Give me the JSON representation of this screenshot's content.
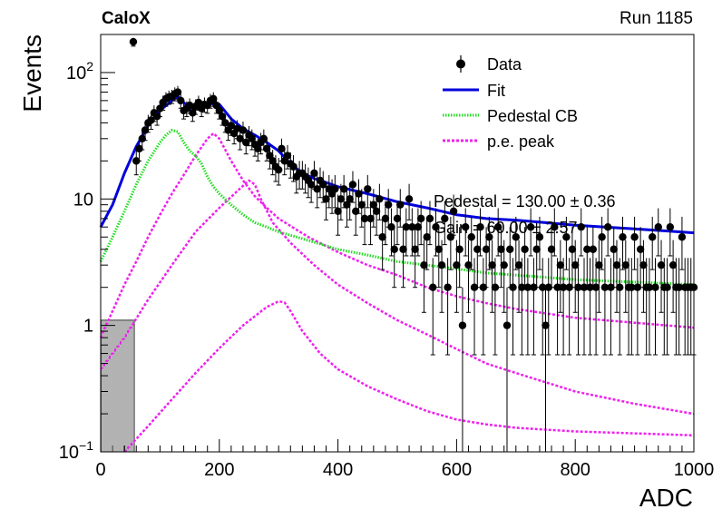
{
  "header": {
    "experiment": "CaloX",
    "run": "Run 1185"
  },
  "chart_data": {
    "type": "scatter",
    "title": "",
    "xlabel": "ADC",
    "ylabel": "Events",
    "xlim": [
      0,
      1000
    ],
    "ylim": [
      0.1,
      200
    ],
    "y_scale": "log",
    "grid": false,
    "legend_position": "top-right",
    "x_ticks": [
      "0",
      "200",
      "400",
      "600",
      "800",
      "1000"
    ],
    "y_ticks": [
      {
        "value": 0.1,
        "base": "10",
        "exp": "−1"
      },
      {
        "value": 1,
        "label": "1"
      },
      {
        "value": 10,
        "label": "10"
      },
      {
        "value": 100,
        "base": "10",
        "exp": "2"
      }
    ],
    "stat_box": [
      "Pedestal = 130.00 ± 0.36",
      "Gain = 60.00 ± 2.57"
    ],
    "legend": [
      {
        "label": "Data",
        "style": "marker",
        "color": "#000000"
      },
      {
        "label": "Fit",
        "style": "solid",
        "color": "#0000dd"
      },
      {
        "label": "Pedestal CB",
        "style": "dotted",
        "color": "#22dd22"
      },
      {
        "label": "p.e. peak",
        "style": "dashed",
        "color": "#ee22ee"
      }
    ],
    "data_points": [
      [
        55,
        175
      ],
      [
        60,
        20
      ],
      [
        65,
        25
      ],
      [
        70,
        30
      ],
      [
        75,
        35
      ],
      [
        80,
        40
      ],
      [
        85,
        42
      ],
      [
        90,
        48
      ],
      [
        95,
        45
      ],
      [
        100,
        52
      ],
      [
        105,
        58
      ],
      [
        110,
        62
      ],
      [
        115,
        64
      ],
      [
        120,
        65
      ],
      [
        125,
        68
      ],
      [
        130,
        70
      ],
      [
        135,
        60
      ],
      [
        140,
        50
      ],
      [
        145,
        52
      ],
      [
        150,
        55
      ],
      [
        155,
        48
      ],
      [
        160,
        54
      ],
      [
        165,
        58
      ],
      [
        170,
        52
      ],
      [
        175,
        56
      ],
      [
        180,
        55
      ],
      [
        185,
        60
      ],
      [
        190,
        62
      ],
      [
        195,
        55
      ],
      [
        200,
        50
      ],
      [
        205,
        45
      ],
      [
        210,
        40
      ],
      [
        215,
        35
      ],
      [
        220,
        38
      ],
      [
        225,
        33
      ],
      [
        230,
        36
      ],
      [
        235,
        30
      ],
      [
        240,
        35
      ],
      [
        245,
        28
      ],
      [
        250,
        32
      ],
      [
        255,
        30
      ],
      [
        260,
        27
      ],
      [
        265,
        25
      ],
      [
        270,
        28
      ],
      [
        275,
        30
      ],
      [
        280,
        25
      ],
      [
        285,
        22
      ],
      [
        290,
        20
      ],
      [
        295,
        18
      ],
      [
        300,
        17
      ],
      [
        305,
        25
      ],
      [
        310,
        20
      ],
      [
        315,
        22
      ],
      [
        320,
        19
      ],
      [
        325,
        18
      ],
      [
        330,
        15
      ],
      [
        335,
        16
      ],
      [
        340,
        16
      ],
      [
        345,
        15
      ],
      [
        350,
        14
      ],
      [
        355,
        13
      ],
      [
        360,
        16
      ],
      [
        365,
        12
      ],
      [
        370,
        14
      ],
      [
        375,
        13
      ],
      [
        380,
        10
      ],
      [
        385,
        12
      ],
      [
        390,
        11
      ],
      [
        395,
        12
      ],
      [
        400,
        8
      ],
      [
        405,
        10
      ],
      [
        410,
        12
      ],
      [
        415,
        9
      ],
      [
        420,
        10
      ],
      [
        425,
        13
      ],
      [
        430,
        8
      ],
      [
        435,
        11
      ],
      [
        440,
        9
      ],
      [
        445,
        7
      ],
      [
        450,
        12
      ],
      [
        455,
        7
      ],
      [
        460,
        9
      ],
      [
        465,
        8
      ],
      [
        470,
        10
      ],
      [
        475,
        5
      ],
      [
        480,
        7
      ],
      [
        485,
        9
      ],
      [
        490,
        6
      ],
      [
        495,
        4
      ],
      [
        500,
        7
      ],
      [
        505,
        9
      ],
      [
        510,
        4
      ],
      [
        515,
        6
      ],
      [
        520,
        10
      ],
      [
        525,
        6
      ],
      [
        530,
        4
      ],
      [
        535,
        6
      ],
      [
        540,
        7
      ],
      [
        545,
        3
      ],
      [
        550,
        5
      ],
      [
        555,
        7
      ],
      [
        560,
        2
      ],
      [
        565,
        6
      ],
      [
        570,
        4
      ],
      [
        575,
        3
      ],
      [
        580,
        7
      ],
      [
        585,
        2
      ],
      [
        590,
        5
      ],
      [
        595,
        8
      ],
      [
        600,
        3
      ],
      [
        605,
        4
      ],
      [
        610,
        1
      ],
      [
        615,
        6
      ],
      [
        620,
        3
      ],
      [
        625,
        5
      ],
      [
        630,
        2
      ],
      [
        635,
        4
      ],
      [
        640,
        6
      ],
      [
        645,
        2
      ],
      [
        650,
        4
      ],
      [
        655,
        5
      ],
      [
        660,
        3
      ],
      [
        665,
        2
      ],
      [
        670,
        6
      ],
      [
        675,
        4
      ],
      [
        680,
        3
      ],
      [
        685,
        1
      ],
      [
        690,
        4
      ],
      [
        695,
        2
      ],
      [
        700,
        5
      ],
      [
        705,
        3
      ],
      [
        710,
        2
      ],
      [
        715,
        4
      ],
      [
        720,
        2
      ],
      [
        725,
        6
      ],
      [
        730,
        2
      ],
      [
        735,
        4
      ],
      [
        740,
        5
      ],
      [
        745,
        2
      ],
      [
        750,
        1
      ],
      [
        755,
        2
      ],
      [
        760,
        4
      ],
      [
        765,
        6
      ],
      [
        770,
        2
      ],
      [
        775,
        3
      ],
      [
        780,
        2
      ],
      [
        785,
        5
      ],
      [
        790,
        2
      ],
      [
        795,
        4
      ],
      [
        800,
        3
      ],
      [
        805,
        2
      ],
      [
        810,
        6
      ],
      [
        815,
        2
      ],
      [
        820,
        4
      ],
      [
        825,
        2
      ],
      [
        830,
        4
      ],
      [
        835,
        2
      ],
      [
        840,
        3
      ],
      [
        845,
        5
      ],
      [
        850,
        2
      ],
      [
        855,
        6
      ],
      [
        860,
        2
      ],
      [
        865,
        4
      ],
      [
        870,
        3
      ],
      [
        875,
        2
      ],
      [
        880,
        5
      ],
      [
        885,
        3
      ],
      [
        890,
        2
      ],
      [
        895,
        2
      ],
      [
        900,
        5
      ],
      [
        905,
        2
      ],
      [
        910,
        4
      ],
      [
        915,
        3
      ],
      [
        920,
        2
      ],
      [
        925,
        2
      ],
      [
        930,
        5
      ],
      [
        935,
        2
      ],
      [
        940,
        6
      ],
      [
        945,
        3
      ],
      [
        950,
        2
      ],
      [
        955,
        2
      ],
      [
        960,
        6
      ],
      [
        965,
        3
      ],
      [
        970,
        2
      ],
      [
        975,
        2
      ],
      [
        980,
        5
      ],
      [
        985,
        2
      ],
      [
        990,
        2
      ],
      [
        995,
        2
      ],
      [
        1000,
        2
      ]
    ],
    "curves": {
      "fit": [
        [
          0,
          6
        ],
        [
          20,
          9
        ],
        [
          40,
          16
        ],
        [
          60,
          26
        ],
        [
          80,
          38
        ],
        [
          100,
          50
        ],
        [
          120,
          60
        ],
        [
          130,
          65
        ],
        [
          140,
          58
        ],
        [
          150,
          52
        ],
        [
          160,
          54
        ],
        [
          180,
          57
        ],
        [
          200,
          56
        ],
        [
          220,
          43
        ],
        [
          240,
          36
        ],
        [
          260,
          32
        ],
        [
          280,
          28
        ],
        [
          300,
          24
        ],
        [
          320,
          19
        ],
        [
          340,
          16
        ],
        [
          360,
          14.5
        ],
        [
          380,
          13.5
        ],
        [
          400,
          12.5
        ],
        [
          450,
          11
        ],
        [
          500,
          9.5
        ],
        [
          550,
          8.5
        ],
        [
          600,
          7.5
        ],
        [
          650,
          7
        ],
        [
          700,
          6.8
        ],
        [
          750,
          6.5
        ],
        [
          800,
          6.2
        ],
        [
          850,
          6
        ],
        [
          900,
          5.8
        ],
        [
          950,
          5.6
        ],
        [
          1000,
          5.4
        ]
      ],
      "pedestal": [
        [
          0,
          3.2
        ],
        [
          20,
          5
        ],
        [
          40,
          8
        ],
        [
          60,
          13
        ],
        [
          80,
          20
        ],
        [
          100,
          28
        ],
        [
          110,
          32
        ],
        [
          120,
          35
        ],
        [
          130,
          34
        ],
        [
          140,
          28
        ],
        [
          150,
          24
        ],
        [
          160,
          22
        ],
        [
          170,
          19
        ],
        [
          180,
          15
        ],
        [
          190,
          12.5
        ],
        [
          200,
          11
        ],
        [
          220,
          9
        ],
        [
          240,
          7.5
        ],
        [
          260,
          6.5
        ],
        [
          280,
          6
        ],
        [
          300,
          5.5
        ],
        [
          350,
          4.7
        ],
        [
          400,
          4
        ],
        [
          450,
          3.6
        ],
        [
          500,
          3.2
        ],
        [
          550,
          3
        ],
        [
          600,
          2.8
        ],
        [
          650,
          2.6
        ],
        [
          700,
          2.5
        ],
        [
          800,
          2.3
        ],
        [
          900,
          2.2
        ],
        [
          1000,
          2.1
        ]
      ],
      "pe1": [
        [
          0,
          0.8
        ],
        [
          20,
          1.3
        ],
        [
          40,
          2.1
        ],
        [
          60,
          3.2
        ],
        [
          80,
          5
        ],
        [
          100,
          7.5
        ],
        [
          120,
          11
        ],
        [
          140,
          15.5
        ],
        [
          160,
          22
        ],
        [
          180,
          30
        ],
        [
          190,
          33
        ],
        [
          200,
          30
        ],
        [
          220,
          20
        ],
        [
          240,
          14
        ],
        [
          260,
          10.5
        ],
        [
          280,
          8.5
        ],
        [
          300,
          7
        ],
        [
          350,
          5
        ],
        [
          400,
          3.8
        ],
        [
          450,
          3
        ],
        [
          500,
          2.5
        ],
        [
          550,
          2
        ],
        [
          600,
          1.7
        ],
        [
          650,
          1.5
        ],
        [
          700,
          1.35
        ],
        [
          800,
          1.15
        ],
        [
          900,
          1.05
        ],
        [
          1000,
          0.96
        ]
      ],
      "pe2": [
        [
          0,
          0.45
        ],
        [
          40,
          0.8
        ],
        [
          80,
          1.6
        ],
        [
          120,
          3
        ],
        [
          160,
          5.5
        ],
        [
          200,
          8.5
        ],
        [
          230,
          11.5
        ],
        [
          250,
          14
        ],
        [
          260,
          13
        ],
        [
          270,
          10
        ],
        [
          290,
          6.5
        ],
        [
          320,
          4.5
        ],
        [
          360,
          3
        ],
        [
          400,
          2.1
        ],
        [
          450,
          1.5
        ],
        [
          500,
          1.1
        ],
        [
          550,
          0.85
        ],
        [
          600,
          0.65
        ],
        [
          650,
          0.5
        ],
        [
          700,
          0.42
        ],
        [
          800,
          0.3
        ],
        [
          900,
          0.24
        ],
        [
          1000,
          0.2
        ]
      ],
      "pe3": [
        [
          40,
          0.1
        ],
        [
          80,
          0.16
        ],
        [
          120,
          0.26
        ],
        [
          160,
          0.42
        ],
        [
          200,
          0.66
        ],
        [
          240,
          1
        ],
        [
          280,
          1.4
        ],
        [
          300,
          1.55
        ],
        [
          310,
          1.52
        ],
        [
          320,
          1.3
        ],
        [
          340,
          0.9
        ],
        [
          370,
          0.6
        ],
        [
          400,
          0.45
        ],
        [
          450,
          0.33
        ],
        [
          500,
          0.26
        ],
        [
          550,
          0.21
        ],
        [
          600,
          0.18
        ],
        [
          650,
          0.165
        ],
        [
          700,
          0.155
        ],
        [
          800,
          0.145
        ],
        [
          900,
          0.14
        ],
        [
          1000,
          0.135
        ]
      ]
    }
  }
}
